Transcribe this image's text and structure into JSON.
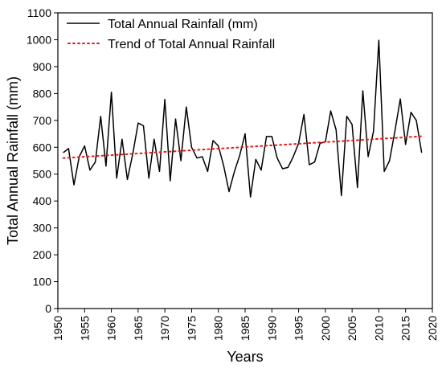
{
  "chart_data": {
    "type": "line",
    "xlabel": "Years",
    "ylabel": "Total Annual Rainfall (mm)",
    "xlim": [
      1950,
      2020
    ],
    "ylim": [
      0,
      1100
    ],
    "x_ticks": [
      1950,
      1955,
      1960,
      1965,
      1970,
      1975,
      1980,
      1985,
      1990,
      1995,
      2000,
      2005,
      2010,
      2015,
      2020
    ],
    "y_ticks": [
      0,
      100,
      200,
      300,
      400,
      500,
      600,
      700,
      800,
      900,
      1000,
      1100
    ],
    "legend_position": "top-left",
    "grid": false,
    "series": [
      {
        "name": "Total Annual Rainfall (mm)",
        "color": "#000000",
        "style": "solid",
        "x": [
          1951,
          1952,
          1953,
          1954,
          1955,
          1956,
          1957,
          1958,
          1959,
          1960,
          1961,
          1962,
          1963,
          1964,
          1965,
          1966,
          1967,
          1968,
          1969,
          1970,
          1971,
          1972,
          1973,
          1974,
          1975,
          1976,
          1977,
          1978,
          1979,
          1980,
          1981,
          1982,
          1983,
          1984,
          1985,
          1986,
          1987,
          1988,
          1989,
          1990,
          1991,
          1992,
          1993,
          1994,
          1995,
          1996,
          1997,
          1998,
          1999,
          2000,
          2001,
          2002,
          2003,
          2004,
          2005,
          2006,
          2007,
          2008,
          2009,
          2010,
          2011,
          2012,
          2013,
          2014,
          2015,
          2016,
          2017,
          2018
        ],
        "y": [
          580,
          595,
          460,
          565,
          605,
          515,
          545,
          715,
          530,
          805,
          485,
          630,
          480,
          575,
          690,
          680,
          485,
          630,
          510,
          778,
          475,
          705,
          550,
          750,
          600,
          560,
          565,
          510,
          625,
          605,
          530,
          435,
          510,
          570,
          650,
          415,
          555,
          515,
          640,
          640,
          560,
          520,
          525,
          565,
          615,
          722,
          535,
          545,
          615,
          620,
          735,
          665,
          420,
          715,
          685,
          450,
          810,
          565,
          660,
          998,
          510,
          550,
          660,
          780,
          610,
          730,
          700,
          580
        ]
      },
      {
        "name": "Trend of Total Annual Rainfall",
        "color": "#e31a1c",
        "style": "dotted",
        "x": [
          1951,
          2018
        ],
        "y": [
          560,
          641
        ]
      }
    ]
  }
}
